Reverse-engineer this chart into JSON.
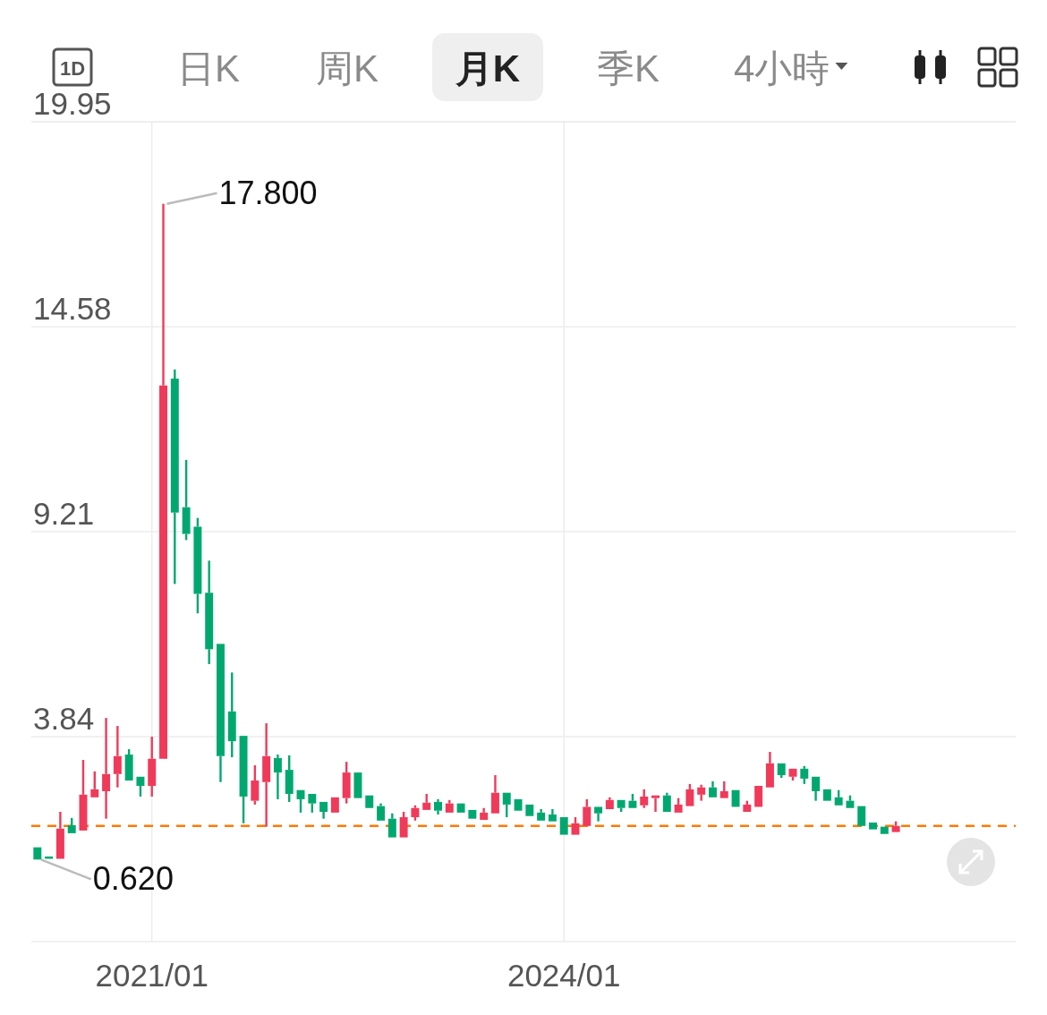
{
  "chart_data": {
    "type": "candlestick",
    "x": [
      "2020-03",
      "2020-04",
      "2020-05",
      "2020-06",
      "2020-07",
      "2020-08",
      "2020-09",
      "2020-10",
      "2020-11",
      "2020-12",
      "2021-01",
      "2021-02",
      "2021-03",
      "2021-04",
      "2021-05",
      "2021-06",
      "2021-07",
      "2021-08",
      "2021-09",
      "2021-10",
      "2021-11",
      "2021-12",
      "2022-01",
      "2022-02",
      "2022-03",
      "2022-04",
      "2022-05",
      "2022-06",
      "2022-07",
      "2022-08",
      "2022-09",
      "2022-10",
      "2022-11",
      "2022-12",
      "2023-01",
      "2023-02",
      "2023-03",
      "2023-04",
      "2023-05",
      "2023-06",
      "2023-07",
      "2023-08",
      "2023-09",
      "2023-10",
      "2023-11",
      "2023-12",
      "2024-01",
      "2024-02",
      "2024-03",
      "2024-04",
      "2024-05",
      "2024-06",
      "2024-07",
      "2024-08",
      "2024-09",
      "2024-10",
      "2024-11",
      "2024-12",
      "2025-01",
      "2025-02",
      "2025-03",
      "2025-04",
      "2025-05",
      "2025-06",
      "2025-07",
      "2025-08",
      "2025-09",
      "2025-10",
      "2025-11",
      "2025-12",
      "2026-01",
      "2026-02",
      "2026-03",
      "2026-04",
      "2026-05",
      "2026-06"
    ],
    "ohlc": [
      [
        0.94,
        0.94,
        0.62,
        0.62
      ],
      [
        0.7,
        0.7,
        0.64,
        0.64
      ],
      [
        0.64,
        1.87,
        0.62,
        1.43
      ],
      [
        1.52,
        1.71,
        1.31,
        1.31
      ],
      [
        1.38,
        3.23,
        1.38,
        2.32
      ],
      [
        2.25,
        2.93,
        2.25,
        2.46
      ],
      [
        2.41,
        4.33,
        1.69,
        2.86
      ],
      [
        2.86,
        4.12,
        2.51,
        3.33
      ],
      [
        3.37,
        3.51,
        2.69,
        2.69
      ],
      [
        2.79,
        2.79,
        2.27,
        2.55
      ],
      [
        2.55,
        3.84,
        2.27,
        3.26
      ],
      [
        3.26,
        17.8,
        3.26,
        13.04
      ],
      [
        13.22,
        13.46,
        7.84,
        9.71
      ],
      [
        9.85,
        11.09,
        8.99,
        9.15
      ],
      [
        9.34,
        9.57,
        7.07,
        7.58
      ],
      [
        7.61,
        8.45,
        5.74,
        6.13
      ],
      [
        6.27,
        6.27,
        2.65,
        3.33
      ],
      [
        4.5,
        5.52,
        3.3,
        3.72
      ],
      [
        3.86,
        3.86,
        1.57,
        2.27
      ],
      [
        2.16,
        3.09,
        2.06,
        2.69
      ],
      [
        2.65,
        4.19,
        1.48,
        3.33
      ],
      [
        3.28,
        3.37,
        2.2,
        2.9
      ],
      [
        2.97,
        3.35,
        2.13,
        2.34
      ],
      [
        2.44,
        2.44,
        1.85,
        2.2
      ],
      [
        2.34,
        2.34,
        1.85,
        2.09
      ],
      [
        2.13,
        2.13,
        1.69,
        1.87
      ],
      [
        1.85,
        2.25,
        1.85,
        2.25
      ],
      [
        2.23,
        3.18,
        2.09,
        2.9
      ],
      [
        2.9,
        2.9,
        2.23,
        2.23
      ],
      [
        2.3,
        2.3,
        1.97,
        1.97
      ],
      [
        2.02,
        2.09,
        1.64,
        1.64
      ],
      [
        1.69,
        1.83,
        1.2,
        1.2
      ],
      [
        1.2,
        1.87,
        1.2,
        1.73
      ],
      [
        1.73,
        2.04,
        1.64,
        1.97
      ],
      [
        1.92,
        2.34,
        1.92,
        2.11
      ],
      [
        2.13,
        2.2,
        1.8,
        1.9
      ],
      [
        1.85,
        2.18,
        1.85,
        2.09
      ],
      [
        2.09,
        2.09,
        1.85,
        1.85
      ],
      [
        1.92,
        1.92,
        1.66,
        1.69
      ],
      [
        1.66,
        1.97,
        1.66,
        1.85
      ],
      [
        1.83,
        2.83,
        1.83,
        2.37
      ],
      [
        2.37,
        2.37,
        1.73,
        2.06
      ],
      [
        2.2,
        2.2,
        1.9,
        1.9
      ],
      [
        2.06,
        2.06,
        1.76,
        1.76
      ],
      [
        1.85,
        1.94,
        1.64,
        1.64
      ],
      [
        1.8,
        1.94,
        1.62,
        1.62
      ],
      [
        1.73,
        1.73,
        1.27,
        1.27
      ],
      [
        1.27,
        1.73,
        1.27,
        1.57
      ],
      [
        1.5,
        2.2,
        1.5,
        2.0
      ],
      [
        2.0,
        2.0,
        1.62,
        1.83
      ],
      [
        1.94,
        2.25,
        1.94,
        2.18
      ],
      [
        2.18,
        2.18,
        1.87,
        1.97
      ],
      [
        2.16,
        2.34,
        1.97,
        1.97
      ],
      [
        2.04,
        2.46,
        1.97,
        2.27
      ],
      [
        2.23,
        2.32,
        1.87,
        2.3
      ],
      [
        2.3,
        2.37,
        1.87,
        1.87
      ],
      [
        1.85,
        2.23,
        1.85,
        2.06
      ],
      [
        2.02,
        2.6,
        2.02,
        2.46
      ],
      [
        2.32,
        2.58,
        2.16,
        2.51
      ],
      [
        2.51,
        2.67,
        2.25,
        2.25
      ],
      [
        2.23,
        2.67,
        2.23,
        2.41
      ],
      [
        2.44,
        2.44,
        2.0,
        2.0
      ],
      [
        1.87,
        2.16,
        1.87,
        2.06
      ],
      [
        2.0,
        2.55,
        2.0,
        2.55
      ],
      [
        2.51,
        3.44,
        2.51,
        3.14
      ],
      [
        3.14,
        3.14,
        2.76,
        2.83
      ],
      [
        2.79,
        3.0,
        2.69,
        3.0
      ],
      [
        3.0,
        3.07,
        2.6,
        2.74
      ],
      [
        2.79,
        2.79,
        2.16,
        2.41
      ],
      [
        2.46,
        2.46,
        2.16,
        2.16
      ],
      [
        2.25,
        2.44,
        2.04,
        2.04
      ],
      [
        2.16,
        2.3,
        1.97,
        1.97
      ],
      [
        2.02,
        2.02,
        1.5,
        1.5
      ],
      [
        1.59,
        1.59,
        1.41,
        1.41
      ],
      [
        1.48,
        1.48,
        1.29,
        1.29
      ],
      [
        1.34,
        1.62,
        1.34,
        1.5
      ]
    ],
    "colors": [
      "#00a870",
      "#00a870",
      "#f03a5a",
      "#00a870",
      "#f03a5a",
      "#f03a5a",
      "#f03a5a",
      "#f03a5a",
      "#00a870",
      "#00a870",
      "#f03a5a",
      "#f03a5a",
      "#00a870",
      "#00a870",
      "#00a870",
      "#00a870",
      "#00a870",
      "#00a870",
      "#00a870",
      "#f03a5a",
      "#f03a5a",
      "#00a870",
      "#00a870",
      "#00a870",
      "#00a870",
      "#00a870",
      "#f03a5a",
      "#f03a5a",
      "#00a870",
      "#00a870",
      "#00a870",
      "#00a870",
      "#f03a5a",
      "#f03a5a",
      "#f03a5a",
      "#00a870",
      "#f03a5a",
      "#00a870",
      "#00a870",
      "#f03a5a",
      "#f03a5a",
      "#00a870",
      "#00a870",
      "#00a870",
      "#00a870",
      "#00a870",
      "#00a870",
      "#f03a5a",
      "#f03a5a",
      "#00a870",
      "#f03a5a",
      "#00a870",
      "#00a870",
      "#f03a5a",
      "#f03a5a",
      "#00a870",
      "#f03a5a",
      "#f03a5a",
      "#f03a5a",
      "#00a870",
      "#f03a5a",
      "#00a870",
      "#f03a5a",
      "#f03a5a",
      "#f03a5a",
      "#00a870",
      "#f03a5a",
      "#00a870",
      "#00a870",
      "#00a870",
      "#00a870",
      "#00a870",
      "#00a870",
      "#00a870",
      "#00a870",
      "#f03a5a"
    ],
    "xlim": [
      "2020-02-15",
      "2027-04-15"
    ],
    "xticks": [
      {
        "value": "2021-01",
        "label": "2021/01"
      },
      {
        "value": "2024-01",
        "label": "2024/01"
      }
    ],
    "ylim": [
      -1.53,
      19.95
    ],
    "yticks": [
      3.84,
      9.21,
      14.58,
      19.95
    ],
    "grid": true,
    "ref_lines": [
      {
        "axis": "y",
        "value": 1.5,
        "color": "#ff7a00",
        "line_style": "dashed"
      }
    ],
    "annotations": [
      "1D",
      "日K",
      "周K",
      "月K",
      "季K",
      "4小時",
      {
        "text": "17.800",
        "x": "2021-02",
        "y": 17.8
      },
      {
        "text": "0.620",
        "x": "2020-03",
        "y": 0.62
      }
    ]
  }
}
